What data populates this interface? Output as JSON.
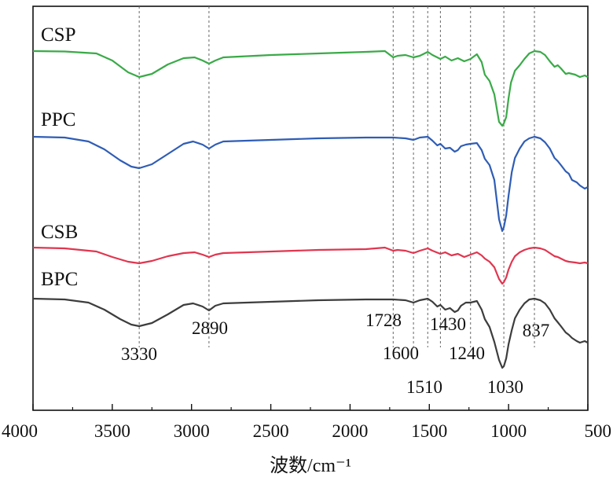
{
  "chart_data": {
    "type": "line",
    "title": "",
    "xlabel": "波数/cm⁻¹",
    "ylabel": "",
    "xlim": [
      4000,
      500
    ],
    "x_reversed": true,
    "grid": false,
    "x_ticks": [
      4000,
      3500,
      3000,
      2500,
      2000,
      1500,
      1000,
      500
    ],
    "x_tick_labels": [
      "4000",
      "3500",
      "3000",
      "2500",
      "2000",
      "1500",
      "1000",
      "500"
    ],
    "reference_lines": [
      3330,
      2890,
      1728,
      1600,
      1510,
      1430,
      1240,
      1030,
      837
    ],
    "annotations": [
      {
        "text": "3330",
        "x": 3330
      },
      {
        "text": "2890",
        "x": 2890
      },
      {
        "text": "1728",
        "x": 1728
      },
      {
        "text": "1600",
        "x": 1600
      },
      {
        "text": "1510",
        "x": 1510
      },
      {
        "text": "1430",
        "x": 1430
      },
      {
        "text": "1240",
        "x": 1240
      },
      {
        "text": "1030",
        "x": 1030
      },
      {
        "text": "837",
        "x": 837
      }
    ],
    "series": [
      {
        "name": "CSP",
        "color": "#3aaa48",
        "points": [
          [
            4000,
            0
          ],
          [
            3800,
            -0.5
          ],
          [
            3600,
            -3
          ],
          [
            3500,
            -12
          ],
          [
            3400,
            -27
          ],
          [
            3330,
            -33
          ],
          [
            3250,
            -29
          ],
          [
            3150,
            -17
          ],
          [
            3050,
            -9
          ],
          [
            2980,
            -8
          ],
          [
            2930,
            -12
          ],
          [
            2890,
            -16
          ],
          [
            2850,
            -12
          ],
          [
            2800,
            -8
          ],
          [
            2500,
            -5
          ],
          [
            2200,
            -3
          ],
          [
            1900,
            -1
          ],
          [
            1780,
            0
          ],
          [
            1728,
            -8
          ],
          [
            1700,
            -6
          ],
          [
            1650,
            -5
          ],
          [
            1600,
            -8
          ],
          [
            1560,
            -6
          ],
          [
            1510,
            -1
          ],
          [
            1480,
            -5
          ],
          [
            1430,
            -10
          ],
          [
            1400,
            -7
          ],
          [
            1360,
            -12
          ],
          [
            1320,
            -9
          ],
          [
            1280,
            -13
          ],
          [
            1240,
            -10
          ],
          [
            1200,
            -4
          ],
          [
            1170,
            -14
          ],
          [
            1150,
            -30
          ],
          [
            1120,
            -38
          ],
          [
            1090,
            -55
          ],
          [
            1060,
            -90
          ],
          [
            1040,
            -95
          ],
          [
            1030,
            -92
          ],
          [
            1015,
            -84
          ],
          [
            1000,
            -60
          ],
          [
            985,
            -40
          ],
          [
            960,
            -25
          ],
          [
            930,
            -18
          ],
          [
            900,
            -10
          ],
          [
            870,
            -3
          ],
          [
            837,
            0
          ],
          [
            800,
            -1
          ],
          [
            770,
            -5
          ],
          [
            740,
            -13
          ],
          [
            710,
            -20
          ],
          [
            690,
            -18
          ],
          [
            670,
            -22
          ],
          [
            640,
            -29
          ],
          [
            620,
            -28
          ],
          [
            580,
            -30
          ],
          [
            550,
            -33
          ],
          [
            520,
            -31
          ],
          [
            500,
            -33
          ]
        ]
      },
      {
        "name": "PPC",
        "color": "#2f5db5",
        "points": [
          [
            4000,
            0
          ],
          [
            3800,
            -1
          ],
          [
            3650,
            -6
          ],
          [
            3550,
            -16
          ],
          [
            3450,
            -30
          ],
          [
            3380,
            -38
          ],
          [
            3330,
            -40
          ],
          [
            3250,
            -35
          ],
          [
            3150,
            -22
          ],
          [
            3050,
            -9
          ],
          [
            2990,
            -6
          ],
          [
            2930,
            -10
          ],
          [
            2890,
            -15
          ],
          [
            2850,
            -10
          ],
          [
            2800,
            -6
          ],
          [
            2500,
            -4
          ],
          [
            2200,
            -2
          ],
          [
            1900,
            -1
          ],
          [
            1728,
            -1
          ],
          [
            1650,
            -2
          ],
          [
            1600,
            -4
          ],
          [
            1560,
            -1
          ],
          [
            1510,
            0
          ],
          [
            1480,
            -5
          ],
          [
            1450,
            -11
          ],
          [
            1430,
            -9
          ],
          [
            1400,
            -15
          ],
          [
            1370,
            -14
          ],
          [
            1340,
            -19
          ],
          [
            1320,
            -17
          ],
          [
            1300,
            -12
          ],
          [
            1270,
            -10
          ],
          [
            1240,
            -9
          ],
          [
            1200,
            -8
          ],
          [
            1170,
            -17
          ],
          [
            1150,
            -28
          ],
          [
            1120,
            -36
          ],
          [
            1090,
            -55
          ],
          [
            1060,
            -105
          ],
          [
            1040,
            -120
          ],
          [
            1030,
            -115
          ],
          [
            1015,
            -100
          ],
          [
            1000,
            -75
          ],
          [
            980,
            -45
          ],
          [
            960,
            -27
          ],
          [
            930,
            -15
          ],
          [
            900,
            -6
          ],
          [
            870,
            -2
          ],
          [
            837,
            0
          ],
          [
            800,
            -2
          ],
          [
            770,
            -7
          ],
          [
            740,
            -15
          ],
          [
            710,
            -27
          ],
          [
            690,
            -31
          ],
          [
            670,
            -36
          ],
          [
            640,
            -44
          ],
          [
            620,
            -47
          ],
          [
            600,
            -55
          ],
          [
            570,
            -58
          ],
          [
            550,
            -62
          ],
          [
            520,
            -66
          ],
          [
            500,
            -64
          ]
        ]
      },
      {
        "name": "CSB",
        "color": "#e0364f",
        "points": [
          [
            4000,
            0
          ],
          [
            3800,
            -1
          ],
          [
            3600,
            -5
          ],
          [
            3500,
            -12
          ],
          [
            3400,
            -18
          ],
          [
            3330,
            -20
          ],
          [
            3250,
            -17
          ],
          [
            3150,
            -11
          ],
          [
            3050,
            -7
          ],
          [
            2980,
            -6
          ],
          [
            2930,
            -9
          ],
          [
            2890,
            -12
          ],
          [
            2850,
            -9
          ],
          [
            2800,
            -7
          ],
          [
            2500,
            -5
          ],
          [
            2200,
            -3
          ],
          [
            1900,
            -2
          ],
          [
            1780,
            0
          ],
          [
            1728,
            -4
          ],
          [
            1700,
            -3
          ],
          [
            1650,
            -4
          ],
          [
            1600,
            -7
          ],
          [
            1560,
            -4
          ],
          [
            1510,
            -1
          ],
          [
            1480,
            -4
          ],
          [
            1430,
            -8
          ],
          [
            1400,
            -6
          ],
          [
            1360,
            -10
          ],
          [
            1320,
            -8
          ],
          [
            1280,
            -12
          ],
          [
            1240,
            -9
          ],
          [
            1200,
            -6
          ],
          [
            1170,
            -10
          ],
          [
            1150,
            -14
          ],
          [
            1120,
            -18
          ],
          [
            1090,
            -25
          ],
          [
            1060,
            -40
          ],
          [
            1040,
            -46
          ],
          [
            1030,
            -44
          ],
          [
            1015,
            -38
          ],
          [
            1000,
            -28
          ],
          [
            980,
            -18
          ],
          [
            960,
            -11
          ],
          [
            930,
            -6
          ],
          [
            900,
            -3
          ],
          [
            870,
            -1
          ],
          [
            837,
            0
          ],
          [
            800,
            -1
          ],
          [
            770,
            -3
          ],
          [
            740,
            -7
          ],
          [
            710,
            -11
          ],
          [
            690,
            -12
          ],
          [
            670,
            -14
          ],
          [
            640,
            -17
          ],
          [
            620,
            -18
          ],
          [
            580,
            -19
          ],
          [
            550,
            -20
          ],
          [
            520,
            -19
          ],
          [
            500,
            -20
          ]
        ]
      },
      {
        "name": "BPC",
        "color": "#3d3d3d",
        "points": [
          [
            4000,
            0
          ],
          [
            3800,
            -1
          ],
          [
            3650,
            -5
          ],
          [
            3550,
            -14
          ],
          [
            3450,
            -26
          ],
          [
            3380,
            -33
          ],
          [
            3330,
            -35
          ],
          [
            3250,
            -31
          ],
          [
            3150,
            -20
          ],
          [
            3050,
            -8
          ],
          [
            2990,
            -6
          ],
          [
            2930,
            -10
          ],
          [
            2890,
            -15
          ],
          [
            2850,
            -9
          ],
          [
            2800,
            -6
          ],
          [
            2500,
            -4
          ],
          [
            2200,
            -2
          ],
          [
            1900,
            -1
          ],
          [
            1728,
            -1
          ],
          [
            1650,
            -2
          ],
          [
            1600,
            -5
          ],
          [
            1560,
            -2
          ],
          [
            1510,
            0
          ],
          [
            1480,
            -4
          ],
          [
            1450,
            -10
          ],
          [
            1430,
            -8
          ],
          [
            1400,
            -14
          ],
          [
            1370,
            -12
          ],
          [
            1340,
            -17
          ],
          [
            1320,
            -15
          ],
          [
            1300,
            -9
          ],
          [
            1270,
            -5
          ],
          [
            1240,
            -5
          ],
          [
            1200,
            -3
          ],
          [
            1170,
            -14
          ],
          [
            1150,
            -26
          ],
          [
            1120,
            -36
          ],
          [
            1090,
            -55
          ],
          [
            1060,
            -78
          ],
          [
            1040,
            -88
          ],
          [
            1030,
            -86
          ],
          [
            1015,
            -76
          ],
          [
            1000,
            -58
          ],
          [
            980,
            -40
          ],
          [
            960,
            -25
          ],
          [
            930,
            -14
          ],
          [
            900,
            -6
          ],
          [
            870,
            -1
          ],
          [
            837,
            0
          ],
          [
            800,
            -2
          ],
          [
            770,
            -6
          ],
          [
            740,
            -14
          ],
          [
            710,
            -25
          ],
          [
            690,
            -30
          ],
          [
            670,
            -35
          ],
          [
            640,
            -43
          ],
          [
            620,
            -46
          ],
          [
            600,
            -50
          ],
          [
            570,
            -54
          ],
          [
            550,
            -56
          ],
          [
            520,
            -54
          ],
          [
            500,
            -56
          ]
        ]
      }
    ]
  }
}
